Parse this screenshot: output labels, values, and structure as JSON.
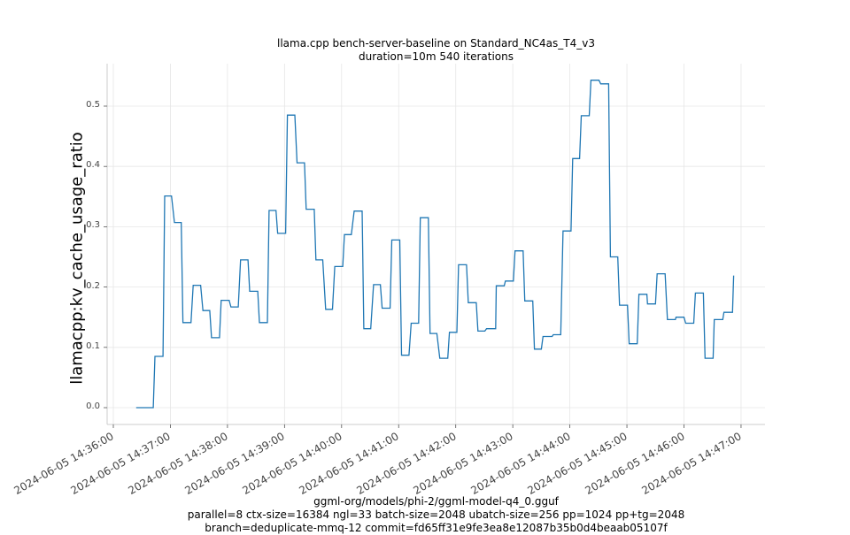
{
  "header": {
    "title_line1": "llama.cpp bench-server-baseline on Standard_NC4as_T4_v3",
    "title_line2": "duration=10m 540 iterations"
  },
  "footer": {
    "line1": "ggml-org/models/phi-2/ggml-model-q4_0.gguf",
    "line2": "parallel=8 ctx-size=16384 ngl=33 batch-size=2048 ubatch-size=256 pp=1024 pp+tg=2048",
    "line3": "branch=deduplicate-mmq-12 commit=fd65ff31e9fe3ea8e12087b35b0d4beaab05107f"
  },
  "colors": {
    "line": "#1f77b4",
    "grid": "#e6e6e6",
    "spine": "#cccccc",
    "tick_text": "#444444"
  },
  "chart_data": {
    "type": "line",
    "title": "llama.cpp bench-server-baseline on Standard_NC4as_T4_v3\nduration=10m 540 iterations",
    "xlabel": "ggml-org/models/phi-2/ggml-model-q4_0.gguf\nparallel=8 ctx-size=16384 ngl=33 batch-size=2048 ubatch-size=256 pp=1024 pp+tg=2048\nbranch=deduplicate-mmq-12 commit=fd65ff31e9fe3ea8e12087b35b0d4beaab05107f",
    "ylabel": "llamacpp:kv_cache_usage_ratio",
    "ylim": [
      -0.028,
      0.572
    ],
    "grid": true,
    "legend": null,
    "yticks": [
      0.0,
      0.1,
      0.2,
      0.3,
      0.4,
      0.5
    ],
    "ytick_labels": [
      "0.0",
      "0.1",
      "0.2",
      "0.3",
      "0.4",
      "0.5"
    ],
    "xticks": [
      "2024-06-05 14:36:00",
      "2024-06-05 14:37:00",
      "2024-06-05 14:38:00",
      "2024-06-05 14:39:00",
      "2024-06-05 14:40:00",
      "2024-06-05 14:41:00",
      "2024-06-05 14:42:00",
      "2024-06-05 14:43:00",
      "2024-06-05 14:44:00",
      "2024-06-05 14:45:00",
      "2024-06-05 14:46:00",
      "2024-06-05 14:47:00"
    ],
    "series": [
      {
        "name": "llamacpp:kv_cache_usage_ratio",
        "step_plateaus_minutes_from_1436": [
          [
            0.4,
            0.7,
            0.0
          ],
          [
            0.73,
            0.87,
            0.085
          ],
          [
            0.9,
            1.02,
            0.351
          ],
          [
            1.07,
            1.19,
            0.307
          ],
          [
            1.22,
            1.36,
            0.141
          ],
          [
            1.4,
            1.53,
            0.203
          ],
          [
            1.57,
            1.69,
            0.161
          ],
          [
            1.72,
            1.86,
            0.116
          ],
          [
            1.89,
            2.03,
            0.178
          ],
          [
            2.06,
            2.19,
            0.167
          ],
          [
            2.23,
            2.36,
            0.245
          ],
          [
            2.39,
            2.53,
            0.193
          ],
          [
            2.56,
            2.7,
            0.141
          ],
          [
            2.73,
            2.85,
            0.327
          ],
          [
            2.88,
            3.02,
            0.289
          ],
          [
            3.05,
            3.18,
            0.485
          ],
          [
            3.22,
            3.35,
            0.406
          ],
          [
            3.38,
            3.52,
            0.329
          ],
          [
            3.55,
            3.67,
            0.245
          ],
          [
            3.72,
            3.84,
            0.163
          ],
          [
            3.88,
            4.02,
            0.234
          ],
          [
            4.05,
            4.17,
            0.287
          ],
          [
            4.22,
            4.36,
            0.326
          ],
          [
            4.39,
            4.51,
            0.131
          ],
          [
            4.56,
            4.68,
            0.204
          ],
          [
            4.71,
            4.85,
            0.165
          ],
          [
            4.88,
            5.02,
            0.278
          ],
          [
            5.05,
            5.18,
            0.087
          ],
          [
            5.22,
            5.35,
            0.14
          ],
          [
            5.38,
            5.52,
            0.315
          ],
          [
            5.55,
            5.67,
            0.123
          ],
          [
            5.72,
            5.86,
            0.082
          ],
          [
            5.89,
            6.02,
            0.125
          ],
          [
            6.05,
            6.19,
            0.237
          ],
          [
            6.22,
            6.36,
            0.174
          ],
          [
            6.39,
            6.51,
            0.127
          ],
          [
            6.54,
            6.7,
            0.131
          ],
          [
            6.71,
            6.85,
            0.202
          ],
          [
            6.87,
            7.01,
            0.21
          ],
          [
            7.04,
            7.18,
            0.26
          ],
          [
            7.21,
            7.35,
            0.177
          ],
          [
            7.38,
            7.5,
            0.097
          ],
          [
            7.53,
            7.69,
            0.118
          ],
          [
            7.71,
            7.84,
            0.121
          ],
          [
            7.88,
            8.02,
            0.293
          ],
          [
            8.05,
            8.17,
            0.413
          ],
          [
            8.2,
            8.34,
            0.484
          ],
          [
            8.37,
            8.51,
            0.543
          ],
          [
            8.54,
            8.68,
            0.537
          ],
          [
            8.71,
            8.84,
            0.25
          ],
          [
            8.87,
            9.01,
            0.17
          ],
          [
            9.04,
            9.18,
            0.106
          ],
          [
            9.21,
            9.35,
            0.188
          ],
          [
            9.36,
            9.5,
            0.172
          ],
          [
            9.53,
            9.67,
            0.222
          ],
          [
            9.71,
            9.85,
            0.146
          ],
          [
            9.86,
            10.0,
            0.15
          ],
          [
            10.03,
            10.17,
            0.14
          ],
          [
            10.2,
            10.34,
            0.19
          ],
          [
            10.37,
            10.51,
            0.082
          ],
          [
            10.53,
            10.68,
            0.146
          ],
          [
            10.7,
            10.85,
            0.158
          ],
          [
            10.87,
            10.87,
            0.219
          ]
        ]
      }
    ]
  }
}
